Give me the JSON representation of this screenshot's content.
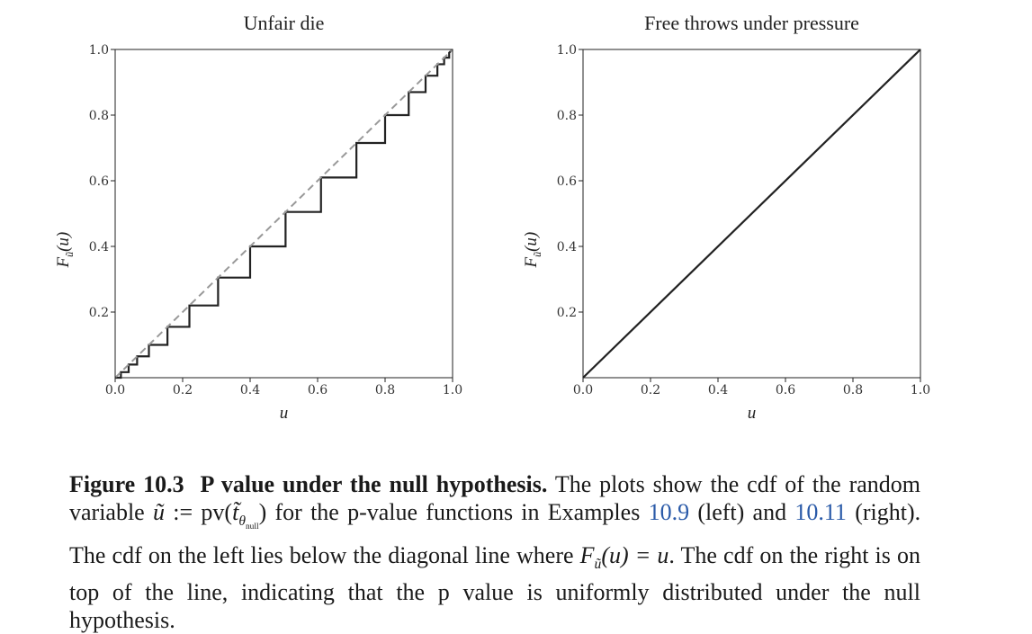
{
  "chart_data": [
    {
      "type": "line",
      "title": "Unfair die",
      "xlabel": "u",
      "ylabel": "F_ũ(u)",
      "xlim": [
        0,
        1
      ],
      "ylim": [
        0,
        1
      ],
      "xticks": [
        "0.0",
        "0.2",
        "0.4",
        "0.6",
        "0.8",
        "1.0"
      ],
      "yticks": [
        "0.2",
        "0.4",
        "0.6",
        "0.8",
        "1.0"
      ],
      "grid": false,
      "series": [
        {
          "style": "step",
          "color": "#222222",
          "x": [
            0,
            0.017,
            0.017,
            0.04,
            0.04,
            0.065,
            0.065,
            0.1,
            0.1,
            0.155,
            0.155,
            0.22,
            0.22,
            0.305,
            0.305,
            0.4,
            0.4,
            0.505,
            0.505,
            0.61,
            0.61,
            0.715,
            0.715,
            0.8,
            0.8,
            0.87,
            0.87,
            0.92,
            0.92,
            0.955,
            0.955,
            0.975,
            0.975,
            0.99,
            0.99,
            1.0
          ],
          "y": [
            0,
            0,
            0.017,
            0.017,
            0.04,
            0.04,
            0.065,
            0.065,
            0.1,
            0.1,
            0.155,
            0.155,
            0.22,
            0.22,
            0.305,
            0.305,
            0.4,
            0.4,
            0.505,
            0.505,
            0.61,
            0.61,
            0.715,
            0.715,
            0.8,
            0.8,
            0.87,
            0.87,
            0.92,
            0.92,
            0.955,
            0.955,
            0.975,
            0.975,
            0.99,
            1.0
          ]
        },
        {
          "style": "dashed",
          "color": "#999999",
          "x": [
            0,
            1
          ],
          "y": [
            0,
            1
          ]
        }
      ]
    },
    {
      "type": "line",
      "title": "Free throws under pressure",
      "xlabel": "u",
      "ylabel": "F_ũ(u)",
      "xlim": [
        0,
        1
      ],
      "ylim": [
        0,
        1
      ],
      "xticks": [
        "0.0",
        "0.2",
        "0.4",
        "0.6",
        "0.8",
        "1.0"
      ],
      "yticks": [
        "0.2",
        "0.4",
        "0.6",
        "0.8",
        "1.0"
      ],
      "grid": false,
      "series": [
        {
          "style": "solid",
          "color": "#222222",
          "x": [
            0,
            1
          ],
          "y": [
            0,
            1
          ]
        }
      ]
    }
  ],
  "caption": {
    "label": "Figure 10.3",
    "heading": "P value under the null hypothesis.",
    "t1": "The plots show the cdf of the random variable",
    "var_u": "ũ",
    "assign": ":=",
    "pv": "pv(",
    "tvar": "t̃",
    "theta": "θ",
    "null": "null",
    "close": ")",
    "t2": "for the p-value functions in Examples",
    "ref1": "10.9",
    "t3": "(left) and",
    "ref2": "10.11",
    "t4": "(right). The cdf on the left lies below the diagonal line where",
    "F": "F",
    "Fsub": "ũ",
    "Fu": "(u) = u",
    "t5": ". The cdf on the right is on top of the line, indicating that the p value is uniformly distributed under the null hypothesis."
  }
}
